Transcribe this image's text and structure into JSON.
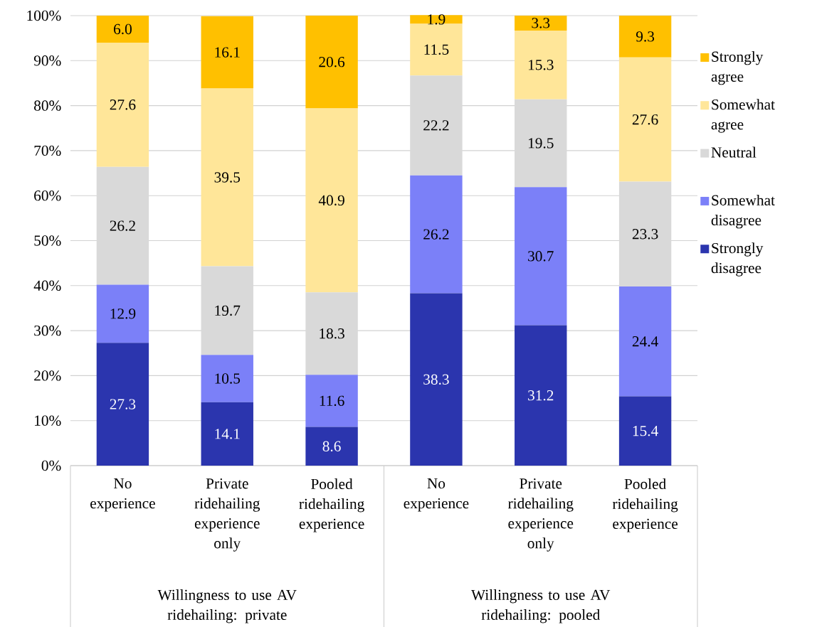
{
  "chart_data": {
    "type": "bar",
    "stacked": true,
    "grid": "y",
    "legend": "right",
    "categories": [
      "No experience",
      "Private ridehailing experience only",
      "Pooled ridehailing experience",
      "No experience",
      "Private ridehailing experience only",
      "Pooled ridehailing experience"
    ],
    "annotations": [
      "Willingness to use AV ridehailing: private",
      "Willingness to use AV ridehailing: pooled"
    ],
    "ylim": [
      0,
      100
    ],
    "yticks": [
      {
        "value": 0,
        "label": "0%"
      },
      {
        "value": 10,
        "label": "10%"
      },
      {
        "value": 20,
        "label": "20%"
      },
      {
        "value": 30,
        "label": "30%"
      },
      {
        "value": 40,
        "label": "40%"
      },
      {
        "value": 50,
        "label": "50%"
      },
      {
        "value": 60,
        "label": "60%"
      },
      {
        "value": 70,
        "label": "70%"
      },
      {
        "value": 80,
        "label": "80%"
      },
      {
        "value": 90,
        "label": "90%"
      },
      {
        "value": 100,
        "label": "100%"
      }
    ],
    "series": [
      {
        "name": "Strongly disagree",
        "color": "#2b35ae",
        "values": [
          27.3,
          14.1,
          8.6,
          38.3,
          31.2,
          15.4
        ],
        "value_labels": [
          "27.3",
          "14.1",
          "8.6",
          "38.3",
          "31.2",
          "15.4"
        ]
      },
      {
        "name": "Somewhat disagree",
        "color": "#7b80f8",
        "values": [
          12.9,
          10.5,
          11.6,
          26.2,
          30.7,
          24.4
        ],
        "value_labels": [
          "12.9",
          "10.5",
          "11.6",
          "26.2",
          "30.7",
          "24.4"
        ]
      },
      {
        "name": "Neutral",
        "color": "#d9d9d9",
        "values": [
          26.2,
          19.7,
          18.3,
          22.2,
          19.5,
          23.3
        ],
        "value_labels": [
          "26.2",
          "19.7",
          "18.3",
          "22.2",
          "19.5",
          "23.3"
        ]
      },
      {
        "name": "Somewhat agree",
        "color": "#ffe699",
        "values": [
          27.6,
          39.5,
          40.9,
          11.5,
          15.3,
          27.6
        ],
        "value_labels": [
          "27.6",
          "39.5",
          "40.9",
          "11.5",
          "15.3",
          "27.6"
        ]
      },
      {
        "name": "Strongly agree",
        "color": "#ffc000",
        "values": [
          6.0,
          16.1,
          20.6,
          1.9,
          3.3,
          9.3
        ],
        "value_labels": [
          "6.0",
          "16.1",
          "20.6",
          "1.9",
          "3.3",
          "9.3"
        ]
      }
    ]
  }
}
